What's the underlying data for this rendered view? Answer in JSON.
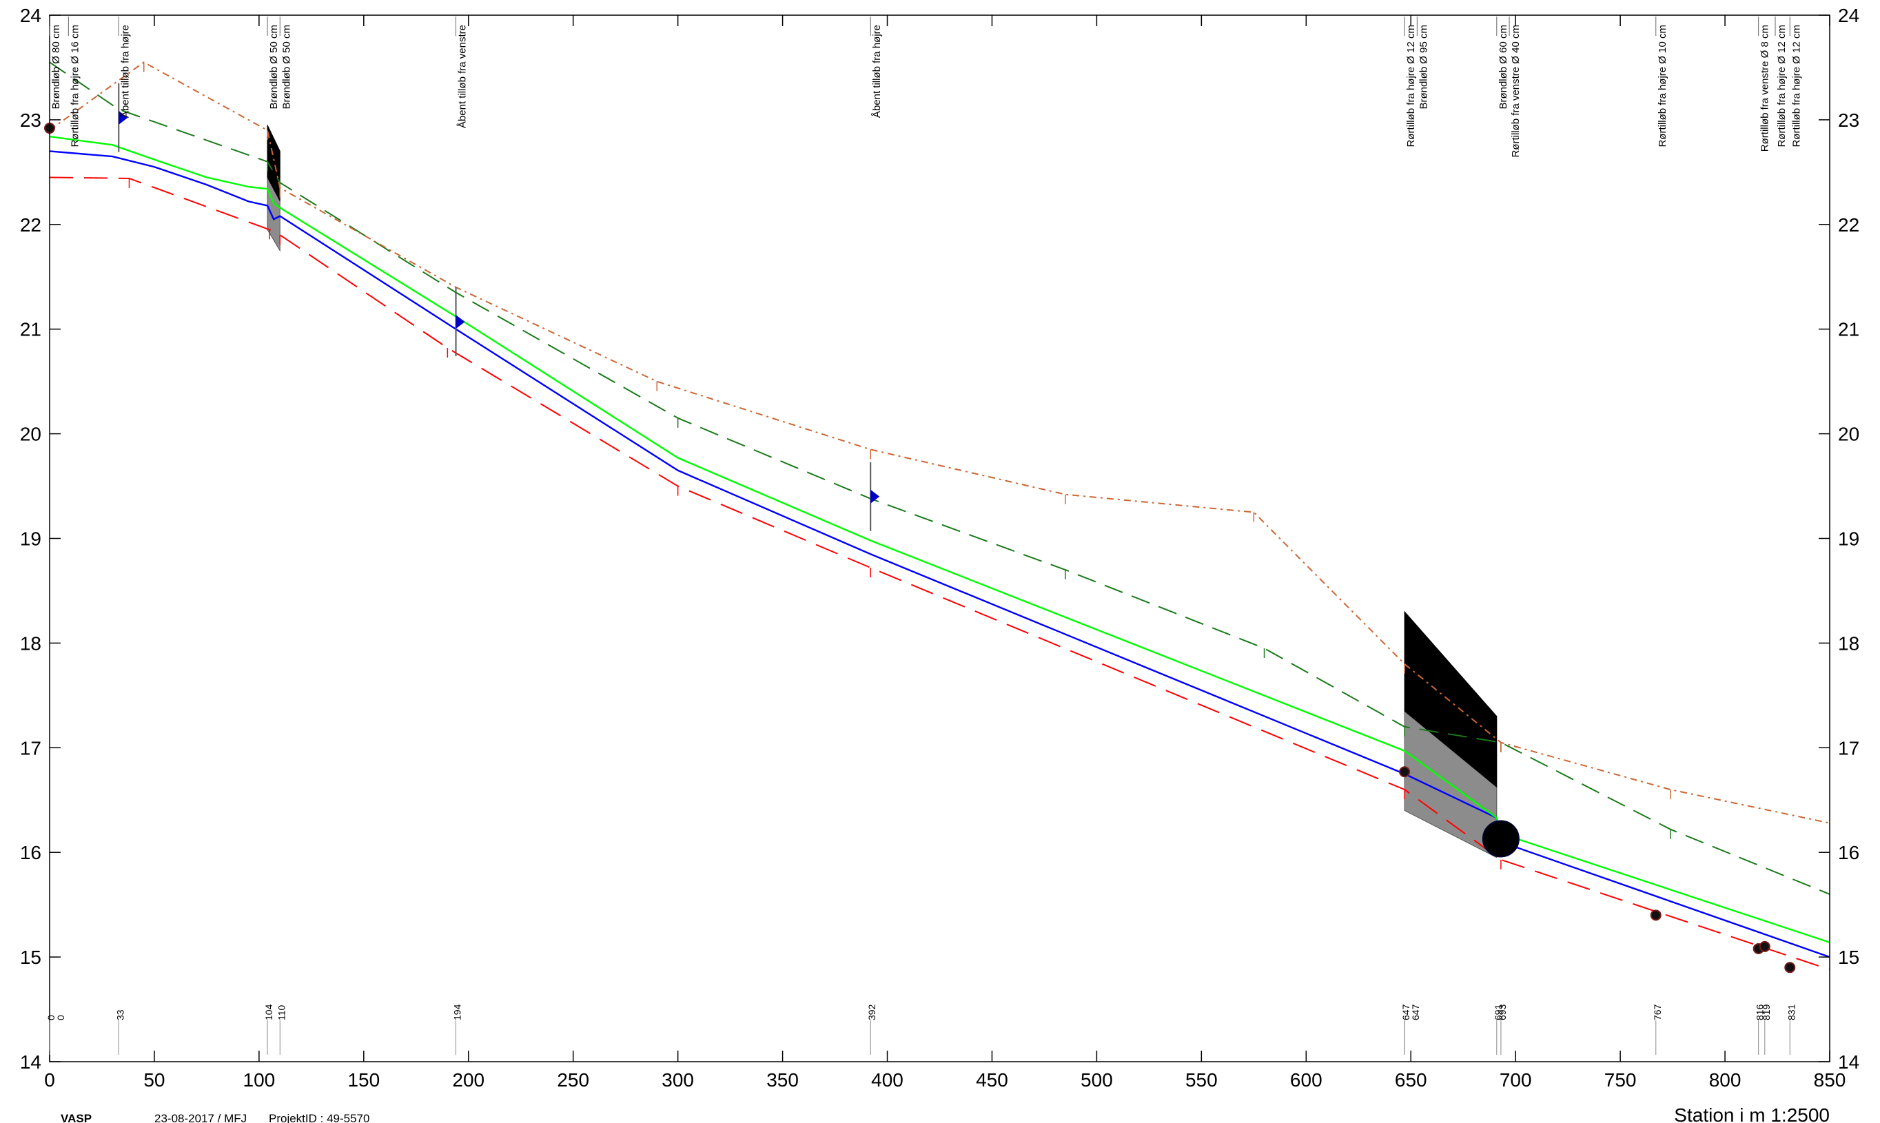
{
  "chart_data": {
    "type": "line",
    "title": "",
    "xlabel": "Station i m  1:2500",
    "ylabel": "",
    "xlim": [
      0,
      850
    ],
    "ylim": [
      14,
      24
    ],
    "x_ticks": [
      0,
      50,
      100,
      150,
      200,
      250,
      300,
      350,
      400,
      450,
      500,
      550,
      600,
      650,
      700,
      750,
      800,
      850
    ],
    "y_ticks": [
      14,
      15,
      16,
      17,
      18,
      19,
      20,
      21,
      22,
      23,
      24
    ],
    "grid": false,
    "series": [
      {
        "color": "#ff0000",
        "dash": "long-dash",
        "x": [
          0,
          38,
          105,
          110,
          190,
          300,
          392,
          647,
          693,
          850
        ],
        "y": [
          22.45,
          22.44,
          21.95,
          21.9,
          20.82,
          19.5,
          18.72,
          16.6,
          15.93,
          14.88
        ]
      },
      {
        "color": "#0000ff",
        "dash": "solid",
        "x": [
          0,
          30,
          50,
          75,
          95,
          104,
          107,
          110,
          194,
          300,
          392,
          647,
          691,
          693,
          850
        ],
        "y": [
          22.7,
          22.65,
          22.55,
          22.38,
          22.22,
          22.18,
          22.05,
          22.08,
          21.0,
          19.65,
          18.85,
          16.75,
          16.33,
          16.1,
          15.0
        ]
      },
      {
        "color": "#00ff00",
        "dash": "solid",
        "x": [
          0,
          30,
          50,
          75,
          95,
          104,
          107,
          110,
          194,
          300,
          392,
          647,
          691,
          693,
          850
        ],
        "y": [
          22.84,
          22.76,
          22.62,
          22.45,
          22.36,
          22.34,
          22.2,
          22.16,
          21.12,
          19.77,
          18.98,
          16.97,
          16.33,
          16.18,
          15.14
        ]
      },
      {
        "color": "#1a7a1a",
        "dash": "dash",
        "x": [
          0,
          33,
          104,
          110,
          194,
          300,
          392,
          485,
          580,
          647,
          693,
          774,
          850
        ],
        "y": [
          23.55,
          23.1,
          22.6,
          22.4,
          21.35,
          20.15,
          19.38,
          18.7,
          17.95,
          17.2,
          17.05,
          16.22,
          15.6
        ]
      },
      {
        "color": "#cc6633",
        "dash": "dash-dot",
        "x": [
          0,
          45,
          104,
          110,
          194,
          290,
          392,
          485,
          575,
          647,
          693,
          774,
          850
        ],
        "y": [
          22.9,
          23.55,
          22.9,
          22.35,
          21.4,
          20.5,
          19.85,
          19.42,
          19.25,
          17.8,
          17.05,
          16.6,
          16.28
        ]
      }
    ],
    "stations": [
      {
        "x": 0,
        "label": "0"
      },
      {
        "x": 0,
        "label": "0"
      },
      {
        "x": 33,
        "label": "33"
      },
      {
        "x": 104,
        "label": "104"
      },
      {
        "x": 110,
        "label": "110"
      },
      {
        "x": 194,
        "label": "194"
      },
      {
        "x": 392,
        "label": "392"
      },
      {
        "x": 647,
        "label": "647"
      },
      {
        "x": 647,
        "label": "647"
      },
      {
        "x": 691,
        "label": "691"
      },
      {
        "x": 693,
        "label": "693"
      },
      {
        "x": 767,
        "label": "767"
      },
      {
        "x": 816,
        "label": "816"
      },
      {
        "x": 819,
        "label": "819"
      },
      {
        "x": 831,
        "label": "831"
      }
    ],
    "annotations": [
      {
        "x": 0,
        "text": "Brøndløb Ø 80 cm"
      },
      {
        "x": 9,
        "text": "Rørtilløb fra højre Ø 16 cm"
      },
      {
        "x": 33,
        "text": "Åbent tilløb fra højre"
      },
      {
        "x": 104,
        "text": "Brøndløb Ø 50 cm"
      },
      {
        "x": 110,
        "text": "Brøndløb Ø 50 cm"
      },
      {
        "x": 194,
        "text": "Åbent tilløb fra venstre"
      },
      {
        "x": 392,
        "text": "Åbent tilløb fra højre"
      },
      {
        "x": 647,
        "text": "Rørtilløb fra højre Ø 12 cm"
      },
      {
        "x": 653,
        "text": "Brøndløb Ø 95 cm"
      },
      {
        "x": 691,
        "text": "Brøndløb Ø 60 cm"
      },
      {
        "x": 697,
        "text": "Rørtilløb fra venstre Ø 40 cm"
      },
      {
        "x": 767,
        "text": "Rørtilløb fra højre Ø 10 cm"
      },
      {
        "x": 816,
        "text": "Rørtilløb fra venstre Ø 8 cm"
      },
      {
        "x": 824,
        "text": "Rørtilløb fra højre Ø 12 cm"
      },
      {
        "x": 831,
        "text": "Rørtilløb fra højre Ø 12 cm"
      }
    ],
    "culverts": [
      {
        "x0": 104,
        "x1": 110,
        "top": [
          22.95,
          22.7
        ],
        "bottom": [
          21.95,
          21.75
        ]
      },
      {
        "x0": 647,
        "x1": 691,
        "top": [
          18.3,
          17.3
        ],
        "bottom": [
          16.4,
          15.95
        ]
      }
    ],
    "points": [
      {
        "x": 0,
        "y": 22.92,
        "kind": "dot"
      },
      {
        "x": 33,
        "y": 23.02,
        "kind": "flag"
      },
      {
        "x": 194,
        "y": 21.07,
        "kind": "flag"
      },
      {
        "x": 392,
        "y": 19.4,
        "kind": "flag"
      },
      {
        "x": 647,
        "y": 16.77,
        "kind": "dot"
      },
      {
        "x": 693,
        "y": 16.13,
        "kind": "big-dot"
      },
      {
        "x": 767,
        "y": 15.4,
        "kind": "dot"
      },
      {
        "x": 816,
        "y": 15.08,
        "kind": "dot"
      },
      {
        "x": 819,
        "y": 15.1,
        "kind": "dot"
      },
      {
        "x": 831,
        "y": 14.9,
        "kind": "dot"
      }
    ]
  },
  "footer": {
    "brand": "VASP",
    "date_user": "23-08-2017 / MFJ",
    "project": "ProjektID : 49-5570",
    "scale": "Station i m  1:2500"
  }
}
